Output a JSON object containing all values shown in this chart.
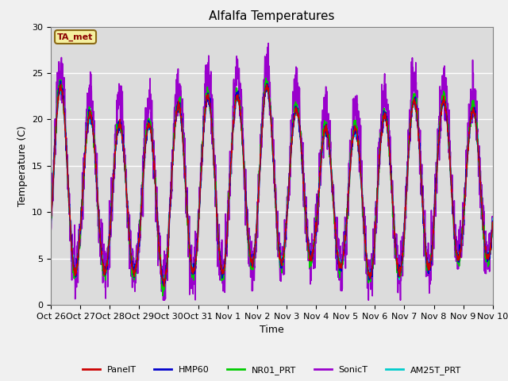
{
  "title": "Alfalfa Temperatures",
  "xlabel": "Time",
  "ylabel": "Temperature (C)",
  "ylim": [
    0,
    30
  ],
  "background_color": "#dcdcdc",
  "plot_bg_color": "#dcdcdc",
  "fig_bg_color": "#f0f0f0",
  "tick_labels": [
    "Oct 26",
    "Oct 27",
    "Oct 28",
    "Oct 29",
    "Oct 30",
    "Oct 31",
    "Nov 1",
    "Nov 2",
    "Nov 3",
    "Nov 4",
    "Nov 5",
    "Nov 6",
    "Nov 7",
    "Nov 8",
    "Nov 9",
    "Nov 10"
  ],
  "annotation_text": "TA_met",
  "annotation_bg": "#f5f0a0",
  "annotation_edge": "#8b6914",
  "legend_items": [
    {
      "label": "PanelT",
      "color": "#cc0000"
    },
    {
      "label": "HMP60",
      "color": "#0000cc"
    },
    {
      "label": "NR01_PRT",
      "color": "#00cc00"
    },
    {
      "label": "SonicT",
      "color": "#9900cc"
    },
    {
      "label": "AM25T_PRT",
      "color": "#00cccc"
    }
  ],
  "num_days": 15,
  "points_per_day": 144,
  "yticks": [
    0,
    5,
    10,
    15,
    20,
    25,
    30
  ],
  "title_fontsize": 11,
  "label_fontsize": 9,
  "tick_fontsize": 8,
  "legend_fontsize": 8
}
